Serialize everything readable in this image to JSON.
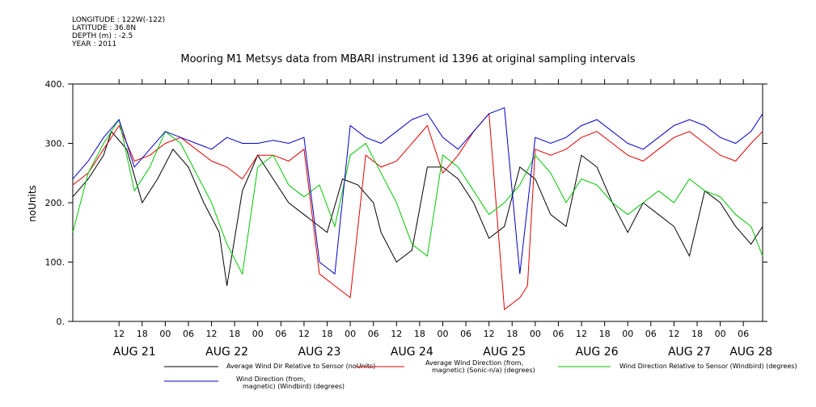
{
  "meta": {
    "longitude": "LONGITUDE : 122W(-122)",
    "latitude": "LATITUDE : 36.8N",
    "depth": "DEPTH (m) : -2.5",
    "year": "YEAR : 2011"
  },
  "chart_data": {
    "type": "line",
    "title": "Mooring M1 Metsys data from MBARI instrument id 1396 at original sampling intervals",
    "ylabel": "noUnits",
    "xlim": [
      0,
      179
    ],
    "ylim": [
      0,
      400
    ],
    "y_ticks": [
      0,
      100,
      200,
      300,
      400
    ],
    "hour_ticks": [
      {
        "t": 12,
        "label": "12"
      },
      {
        "t": 18,
        "label": "18"
      },
      {
        "t": 24,
        "label": "00"
      },
      {
        "t": 30,
        "label": "06"
      },
      {
        "t": 36,
        "label": "12"
      },
      {
        "t": 42,
        "label": "18"
      },
      {
        "t": 48,
        "label": "00"
      },
      {
        "t": 54,
        "label": "06"
      },
      {
        "t": 60,
        "label": "12"
      },
      {
        "t": 66,
        "label": "18"
      },
      {
        "t": 72,
        "label": "00"
      },
      {
        "t": 78,
        "label": "06"
      },
      {
        "t": 84,
        "label": "12"
      },
      {
        "t": 90,
        "label": "18"
      },
      {
        "t": 96,
        "label": "00"
      },
      {
        "t": 102,
        "label": "06"
      },
      {
        "t": 108,
        "label": "12"
      },
      {
        "t": 114,
        "label": "18"
      },
      {
        "t": 120,
        "label": "00"
      },
      {
        "t": 126,
        "label": "06"
      },
      {
        "t": 132,
        "label": "12"
      },
      {
        "t": 138,
        "label": "18"
      },
      {
        "t": 144,
        "label": "00"
      },
      {
        "t": 150,
        "label": "06"
      },
      {
        "t": 156,
        "label": "12"
      },
      {
        "t": 162,
        "label": "18"
      },
      {
        "t": 168,
        "label": "00"
      },
      {
        "t": 174,
        "label": "06"
      }
    ],
    "day_labels": [
      {
        "t": 16,
        "label": "AUG 21"
      },
      {
        "t": 40,
        "label": "AUG 22"
      },
      {
        "t": 64,
        "label": "AUG 23"
      },
      {
        "t": 88,
        "label": "AUG 24"
      },
      {
        "t": 112,
        "label": "AUG 25"
      },
      {
        "t": 136,
        "label": "AUG 26"
      },
      {
        "t": 160,
        "label": "AUG 27"
      },
      {
        "t": 176,
        "label": "AUG 28"
      }
    ],
    "series": [
      {
        "name": "Average Wind Dir Relative to Sensor (noUnits)",
        "color": "#000000",
        "x": [
          0,
          4,
          8,
          10,
          14,
          18,
          22,
          26,
          30,
          34,
          38,
          40,
          44,
          48,
          52,
          56,
          60,
          62,
          66,
          70,
          74,
          78,
          80,
          84,
          88,
          92,
          96,
          100,
          104,
          108,
          112,
          116,
          120,
          124,
          128,
          132,
          136,
          140,
          144,
          148,
          152,
          156,
          160,
          164,
          168,
          172,
          176,
          179
        ],
        "y": [
          210,
          240,
          280,
          320,
          290,
          200,
          240,
          290,
          260,
          200,
          150,
          60,
          220,
          280,
          240,
          200,
          180,
          170,
          150,
          240,
          230,
          200,
          150,
          100,
          120,
          260,
          260,
          240,
          200,
          140,
          160,
          260,
          240,
          180,
          160,
          280,
          260,
          200,
          150,
          200,
          180,
          160,
          110,
          220,
          200,
          160,
          130,
          160
        ]
      },
      {
        "name": "Average Wind Direction (from, magnetic) (Sonic-n/a) (degrees)",
        "color": "#e00000",
        "x": [
          0,
          4,
          8,
          12,
          16,
          20,
          24,
          28,
          32,
          36,
          40,
          44,
          48,
          52,
          56,
          60,
          64,
          68,
          72,
          76,
          80,
          84,
          88,
          92,
          96,
          100,
          104,
          108,
          112,
          116,
          118,
          120,
          124,
          128,
          132,
          136,
          140,
          144,
          148,
          152,
          156,
          160,
          164,
          168,
          172,
          176,
          179
        ],
        "y": [
          230,
          250,
          290,
          330,
          270,
          280,
          300,
          310,
          290,
          270,
          260,
          240,
          280,
          280,
          270,
          290,
          80,
          60,
          40,
          280,
          260,
          270,
          300,
          330,
          250,
          280,
          320,
          350,
          20,
          40,
          60,
          290,
          280,
          290,
          310,
          320,
          300,
          280,
          270,
          290,
          310,
          320,
          300,
          280,
          270,
          300,
          320
        ]
      },
      {
        "name": "Wind Direction Relative to Sensor (Windbird) (degrees)",
        "color": "#00c800",
        "x": [
          0,
          4,
          8,
          12,
          16,
          20,
          24,
          28,
          32,
          36,
          40,
          44,
          48,
          52,
          56,
          60,
          64,
          68,
          72,
          76,
          80,
          84,
          88,
          92,
          96,
          100,
          104,
          108,
          112,
          116,
          120,
          124,
          128,
          132,
          136,
          140,
          144,
          148,
          152,
          156,
          160,
          164,
          168,
          172,
          176,
          179
        ],
        "y": [
          150,
          250,
          300,
          340,
          220,
          260,
          320,
          300,
          250,
          200,
          130,
          80,
          260,
          280,
          230,
          210,
          230,
          160,
          280,
          300,
          250,
          200,
          130,
          110,
          280,
          260,
          220,
          180,
          200,
          230,
          280,
          250,
          200,
          240,
          230,
          200,
          180,
          200,
          220,
          200,
          240,
          220,
          210,
          180,
          160,
          110
        ]
      },
      {
        "name": "Wind Direction (from, magnetic) (Windbird) (degrees)",
        "color": "#0000c8",
        "x": [
          0,
          4,
          8,
          12,
          16,
          20,
          24,
          28,
          32,
          36,
          40,
          44,
          48,
          52,
          56,
          60,
          64,
          68,
          72,
          76,
          80,
          84,
          88,
          92,
          96,
          100,
          104,
          108,
          112,
          116,
          120,
          124,
          128,
          132,
          136,
          140,
          144,
          148,
          152,
          156,
          160,
          164,
          168,
          172,
          176,
          179
        ],
        "y": [
          240,
          270,
          310,
          340,
          260,
          290,
          320,
          310,
          300,
          290,
          310,
          300,
          300,
          305,
          300,
          310,
          100,
          80,
          330,
          310,
          300,
          320,
          340,
          350,
          310,
          290,
          320,
          350,
          360,
          80,
          310,
          300,
          310,
          330,
          340,
          320,
          300,
          290,
          310,
          330,
          340,
          330,
          310,
          300,
          320,
          350
        ]
      }
    ],
    "legend": [
      {
        "label": "Average Wind Dir Relative to Sensor (noUnits)",
        "color": "#000000"
      },
      {
        "label": "Average Wind Direction (from,",
        "label2": "magnetic) (Sonic-n/a) (degrees)",
        "color": "#e00000"
      },
      {
        "label": "Wind Direction Relative to Sensor (Windbird) (degrees)",
        "color": "#00c800"
      },
      {
        "label": "Wind Direction (from,",
        "label2": "magnetic) (Windbird) (degrees)",
        "color": "#0000c8"
      }
    ]
  }
}
